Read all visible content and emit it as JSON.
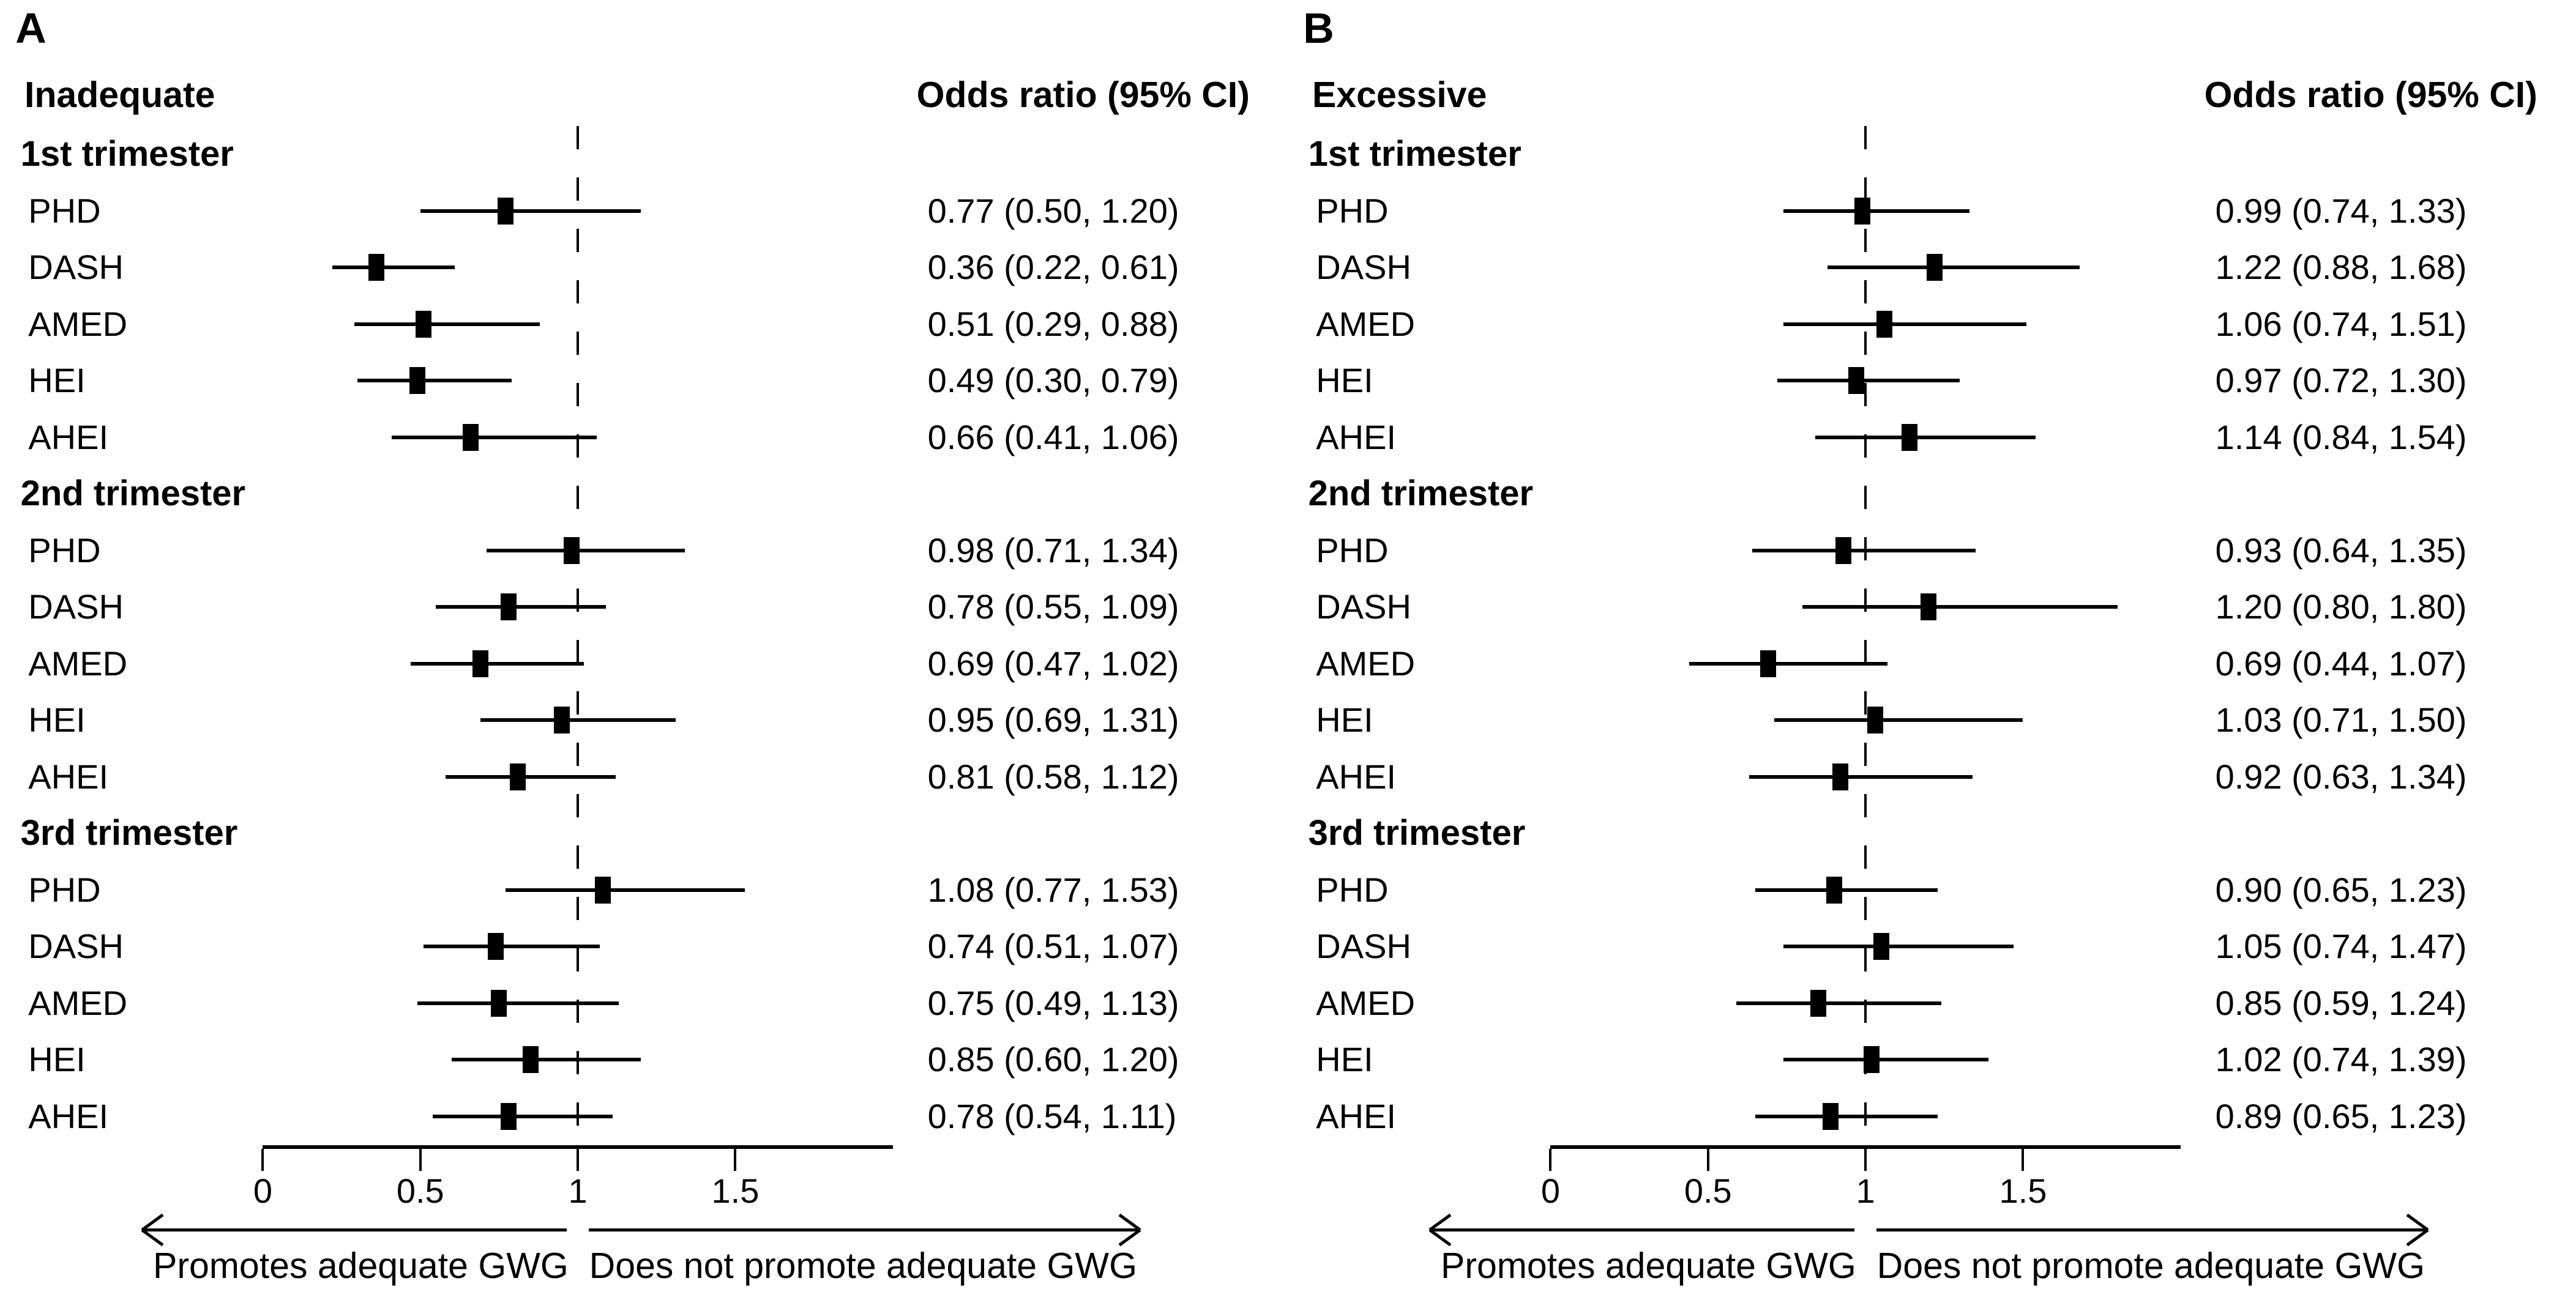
{
  "page": {
    "background": "#ffffff",
    "text_color": "#000000"
  },
  "chart_data": [
    {
      "type": "scatter",
      "chart_kind": "forest-plot",
      "panel_label": "A",
      "title": "Inadequate",
      "value_column_header": "Odds ratio (95% CI)",
      "x_axis": {
        "ticks": [
          {
            "value": 0,
            "label": "0"
          },
          {
            "value": 0.5,
            "label": "0.5"
          },
          {
            "value": 1,
            "label": "1"
          },
          {
            "value": 1.5,
            "label": "1.5"
          }
        ],
        "line_range": [
          0,
          2.0
        ],
        "reference_line": 1,
        "grid": false
      },
      "footer_arrows": {
        "left_label": "Promotes adequate GWG",
        "right_label": "Does not promote adequate GWG"
      },
      "groups": [
        {
          "label": "1st trimester",
          "rows": [
            {
              "label": "PHD",
              "or": 0.77,
              "ci_low": 0.5,
              "ci_high": 1.2,
              "display": "0.77 (0.50, 1.20)"
            },
            {
              "label": "DASH",
              "or": 0.36,
              "ci_low": 0.22,
              "ci_high": 0.61,
              "display": "0.36 (0.22, 0.61)"
            },
            {
              "label": "AMED",
              "or": 0.51,
              "ci_low": 0.29,
              "ci_high": 0.88,
              "display": "0.51 (0.29, 0.88)"
            },
            {
              "label": "HEI",
              "or": 0.49,
              "ci_low": 0.3,
              "ci_high": 0.79,
              "display": "0.49 (0.30, 0.79)"
            },
            {
              "label": "AHEI",
              "or": 0.66,
              "ci_low": 0.41,
              "ci_high": 1.06,
              "display": "0.66 (0.41, 1.06)"
            }
          ]
        },
        {
          "label": "2nd trimester",
          "rows": [
            {
              "label": "PHD",
              "or": 0.98,
              "ci_low": 0.71,
              "ci_high": 1.34,
              "display": "0.98 (0.71, 1.34)"
            },
            {
              "label": "DASH",
              "or": 0.78,
              "ci_low": 0.55,
              "ci_high": 1.09,
              "display": "0.78 (0.55, 1.09)"
            },
            {
              "label": "AMED",
              "or": 0.69,
              "ci_low": 0.47,
              "ci_high": 1.02,
              "display": "0.69 (0.47, 1.02)"
            },
            {
              "label": "HEI",
              "or": 0.95,
              "ci_low": 0.69,
              "ci_high": 1.31,
              "display": "0.95 (0.69, 1.31)"
            },
            {
              "label": "AHEI",
              "or": 0.81,
              "ci_low": 0.58,
              "ci_high": 1.12,
              "display": "0.81 (0.58, 1.12)"
            }
          ]
        },
        {
          "label": "3rd trimester",
          "rows": [
            {
              "label": "PHD",
              "or": 1.08,
              "ci_low": 0.77,
              "ci_high": 1.53,
              "display": "1.08 (0.77, 1.53)"
            },
            {
              "label": "DASH",
              "or": 0.74,
              "ci_low": 0.51,
              "ci_high": 1.07,
              "display": "0.74 (0.51, 1.07)"
            },
            {
              "label": "AMED",
              "or": 0.75,
              "ci_low": 0.49,
              "ci_high": 1.13,
              "display": "0.75 (0.49, 1.13)"
            },
            {
              "label": "HEI",
              "or": 0.85,
              "ci_low": 0.6,
              "ci_high": 1.2,
              "display": "0.85 (0.60, 1.20)"
            },
            {
              "label": "AHEI",
              "or": 0.78,
              "ci_low": 0.54,
              "ci_high": 1.11,
              "display": "0.78 (0.54, 1.11)"
            }
          ]
        }
      ]
    },
    {
      "type": "scatter",
      "chart_kind": "forest-plot",
      "panel_label": "B",
      "title": "Excessive",
      "value_column_header": "Odds ratio (95% CI)",
      "x_axis": {
        "ticks": [
          {
            "value": 0,
            "label": "0"
          },
          {
            "value": 0.5,
            "label": "0.5"
          },
          {
            "value": 1,
            "label": "1"
          },
          {
            "value": 1.5,
            "label": "1.5"
          }
        ],
        "line_range": [
          0,
          2.0
        ],
        "reference_line": 1,
        "grid": false
      },
      "footer_arrows": {
        "left_label": "Promotes adequate GWG",
        "right_label": "Does not promote adequate GWG"
      },
      "groups": [
        {
          "label": "1st trimester",
          "rows": [
            {
              "label": "PHD",
              "or": 0.99,
              "ci_low": 0.74,
              "ci_high": 1.33,
              "display": "0.99 (0.74, 1.33)"
            },
            {
              "label": "DASH",
              "or": 1.22,
              "ci_low": 0.88,
              "ci_high": 1.68,
              "display": "1.22 (0.88, 1.68)"
            },
            {
              "label": "AMED",
              "or": 1.06,
              "ci_low": 0.74,
              "ci_high": 1.51,
              "display": "1.06 (0.74, 1.51)"
            },
            {
              "label": "HEI",
              "or": 0.97,
              "ci_low": 0.72,
              "ci_high": 1.3,
              "display": "0.97 (0.72, 1.30)"
            },
            {
              "label": "AHEI",
              "or": 1.14,
              "ci_low": 0.84,
              "ci_high": 1.54,
              "display": "1.14 (0.84, 1.54)"
            }
          ]
        },
        {
          "label": "2nd trimester",
          "rows": [
            {
              "label": "PHD",
              "or": 0.93,
              "ci_low": 0.64,
              "ci_high": 1.35,
              "display": "0.93 (0.64, 1.35)"
            },
            {
              "label": "DASH",
              "or": 1.2,
              "ci_low": 0.8,
              "ci_high": 1.8,
              "display": "1.20 (0.80, 1.80)"
            },
            {
              "label": "AMED",
              "or": 0.69,
              "ci_low": 0.44,
              "ci_high": 1.07,
              "display": "0.69 (0.44, 1.07)"
            },
            {
              "label": "HEI",
              "or": 1.03,
              "ci_low": 0.71,
              "ci_high": 1.5,
              "display": "1.03 (0.71, 1.50)"
            },
            {
              "label": "AHEI",
              "or": 0.92,
              "ci_low": 0.63,
              "ci_high": 1.34,
              "display": "0.92 (0.63, 1.34)"
            }
          ]
        },
        {
          "label": "3rd trimester",
          "rows": [
            {
              "label": "PHD",
              "or": 0.9,
              "ci_low": 0.65,
              "ci_high": 1.23,
              "display": "0.90 (0.65, 1.23)"
            },
            {
              "label": "DASH",
              "or": 1.05,
              "ci_low": 0.74,
              "ci_high": 1.47,
              "display": "1.05 (0.74, 1.47)"
            },
            {
              "label": "AMED",
              "or": 0.85,
              "ci_low": 0.59,
              "ci_high": 1.24,
              "display": "0.85 (0.59, 1.24)"
            },
            {
              "label": "HEI",
              "or": 1.02,
              "ci_low": 0.74,
              "ci_high": 1.39,
              "display": "1.02 (0.74, 1.39)"
            },
            {
              "label": "AHEI",
              "or": 0.89,
              "ci_low": 0.65,
              "ci_high": 1.23,
              "display": "0.89 (0.65, 1.23)"
            }
          ]
        }
      ]
    }
  ]
}
